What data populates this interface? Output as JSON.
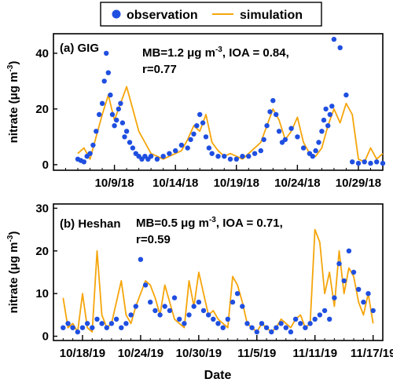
{
  "legend": {
    "observation_label": "observation",
    "simulation_label": "simulation",
    "observation_color": "#1f4fe0",
    "simulation_color": "#f5a50a"
  },
  "x_axis_title": "Date",
  "chart_data": [
    {
      "type": "scatter",
      "panel_label": "(a) GIG",
      "stats_line1": "MB=1.2 μg m",
      "stats_sup": "-3",
      "stats_line1_rest": ", IOA = 0.84,",
      "stats_line2": "r=0.77",
      "ylabel": "nitrate (μg m",
      "ylabel_sup": "-3",
      "ylabel_close": ")",
      "x_ticks": [
        "10/9/18",
        "10/14/18",
        "10/19/18",
        "10/24/18",
        "10/29/18"
      ],
      "xlim": [
        "2018-10-04",
        "2018-10-31"
      ],
      "y_ticks": [
        0,
        20,
        40
      ],
      "ylim": [
        -2,
        47
      ],
      "grid": false,
      "series": [
        {
          "name": "observation",
          "kind": "points",
          "x": [
            "2018-10-06 00:00",
            "2018-10-06 06:00",
            "2018-10-06 12:00",
            "2018-10-06 18:00",
            "2018-10-07 00:00",
            "2018-10-07 06:00",
            "2018-10-07 12:00",
            "2018-10-07 18:00",
            "2018-10-08 00:00",
            "2018-10-08 04:00",
            "2018-10-08 08:00",
            "2018-10-08 12:00",
            "2018-10-08 16:00",
            "2018-10-08 20:00",
            "2018-10-09 00:00",
            "2018-10-09 04:00",
            "2018-10-09 08:00",
            "2018-10-09 12:00",
            "2018-10-09 16:00",
            "2018-10-09 20:00",
            "2018-10-10 00:00",
            "2018-10-10 06:00",
            "2018-10-10 12:00",
            "2018-10-10 18:00",
            "2018-10-11 00:00",
            "2018-10-11 06:00",
            "2018-10-11 12:00",
            "2018-10-11 18:00",
            "2018-10-12 00:00",
            "2018-10-12 12:00",
            "2018-10-13 00:00",
            "2018-10-13 12:00",
            "2018-10-14 00:00",
            "2018-10-14 12:00",
            "2018-10-15 00:00",
            "2018-10-15 06:00",
            "2018-10-15 12:00",
            "2018-10-15 18:00",
            "2018-10-16 00:00",
            "2018-10-16 06:00",
            "2018-10-16 12:00",
            "2018-10-16 18:00",
            "2018-10-17 00:00",
            "2018-10-17 12:00",
            "2018-10-18 00:00",
            "2018-10-18 12:00",
            "2018-10-19 00:00",
            "2018-10-19 12:00",
            "2018-10-20 00:00",
            "2018-10-20 12:00",
            "2018-10-21 00:00",
            "2018-10-21 06:00",
            "2018-10-21 12:00",
            "2018-10-21 18:00",
            "2018-10-22 00:00",
            "2018-10-22 06:00",
            "2018-10-22 12:00",
            "2018-10-22 18:00",
            "2018-10-23 00:00",
            "2018-10-23 12:00",
            "2018-10-24 00:00",
            "2018-10-24 12:00",
            "2018-10-25 00:00",
            "2018-10-25 06:00",
            "2018-10-25 12:00",
            "2018-10-25 18:00",
            "2018-10-26 00:00",
            "2018-10-26 04:00",
            "2018-10-26 08:00",
            "2018-10-26 12:00",
            "2018-10-26 16:00",
            "2018-10-26 20:00",
            "2018-10-27 00:00",
            "2018-10-27 12:00",
            "2018-10-28 00:00",
            "2018-10-28 12:00",
            "2018-10-29 00:00",
            "2018-10-29 12:00",
            "2018-10-30 00:00",
            "2018-10-30 12:00",
            "2018-10-31 00:00"
          ],
          "y": [
            2,
            1.5,
            1,
            3,
            4,
            7,
            12,
            18,
            22,
            30,
            40,
            33,
            25,
            18,
            14,
            16,
            20,
            22,
            15,
            10,
            12,
            8,
            6,
            4,
            3,
            2,
            3,
            2,
            3,
            2,
            3,
            4,
            5,
            7,
            6,
            9,
            11,
            14,
            18,
            15,
            10,
            6,
            4,
            3,
            3,
            2,
            2,
            3,
            3,
            4,
            5,
            9,
            14,
            19,
            23,
            18,
            12,
            8,
            9,
            13,
            10,
            6,
            4,
            3,
            5,
            8,
            12,
            16,
            20,
            14,
            18,
            21,
            45,
            42,
            25,
            1,
            0.5,
            1,
            0.5,
            1,
            0.5
          ]
        },
        {
          "name": "simulation",
          "kind": "line",
          "x": [
            "2018-10-06 00:00",
            "2018-10-06 12:00",
            "2018-10-07 00:00",
            "2018-10-07 12:00",
            "2018-10-08 00:00",
            "2018-10-08 12:00",
            "2018-10-09 00:00",
            "2018-10-09 12:00",
            "2018-10-10 00:00",
            "2018-10-10 12:00",
            "2018-10-11 00:00",
            "2018-10-11 12:00",
            "2018-10-12 00:00",
            "2018-10-12 12:00",
            "2018-10-13 00:00",
            "2018-10-13 12:00",
            "2018-10-14 00:00",
            "2018-10-14 12:00",
            "2018-10-15 00:00",
            "2018-10-15 12:00",
            "2018-10-16 00:00",
            "2018-10-16 12:00",
            "2018-10-17 00:00",
            "2018-10-17 12:00",
            "2018-10-18 00:00",
            "2018-10-18 12:00",
            "2018-10-19 00:00",
            "2018-10-19 12:00",
            "2018-10-20 00:00",
            "2018-10-20 12:00",
            "2018-10-21 00:00",
            "2018-10-21 12:00",
            "2018-10-22 00:00",
            "2018-10-22 12:00",
            "2018-10-23 00:00",
            "2018-10-23 12:00",
            "2018-10-24 00:00",
            "2018-10-24 12:00",
            "2018-10-25 00:00",
            "2018-10-25 12:00",
            "2018-10-26 00:00",
            "2018-10-26 12:00",
            "2018-10-27 00:00",
            "2018-10-27 12:00",
            "2018-10-28 00:00",
            "2018-10-28 12:00",
            "2018-10-29 00:00",
            "2018-10-29 12:00",
            "2018-10-30 00:00",
            "2018-10-30 12:00",
            "2018-10-31 00:00"
          ],
          "y": [
            4,
            6,
            2,
            10,
            18,
            25,
            16,
            22,
            28,
            20,
            12,
            8,
            4,
            3,
            2,
            3,
            4,
            5,
            9,
            14,
            12,
            18,
            8,
            5,
            3,
            4,
            3,
            2,
            4,
            6,
            8,
            14,
            20,
            16,
            9,
            12,
            17,
            8,
            4,
            3,
            6,
            14,
            20,
            15,
            22,
            18,
            2,
            1,
            6,
            2,
            4
          ]
        }
      ]
    },
    {
      "type": "scatter",
      "panel_label": "(b) Heshan",
      "stats_line1": "MB=0.5 μg m",
      "stats_sup": "-3",
      "stats_line1_rest": ", IOA = 0.71,",
      "stats_line2": "r=0.59",
      "ylabel": "nitrate (μg m",
      "ylabel_sup": "-3",
      "ylabel_close": ")",
      "x_ticks": [
        "10/18/19",
        "10/24/19",
        "10/30/19",
        "11/5/19",
        "11/11/19",
        "11/17/19"
      ],
      "xlim": [
        "2019-10-15",
        "2019-11-18"
      ],
      "y_ticks": [
        0,
        10,
        20,
        30
      ],
      "ylim": [
        -1,
        31
      ],
      "grid": false,
      "series": [
        {
          "name": "observation",
          "kind": "points",
          "x": [
            "2019-10-16 00:00",
            "2019-10-16 12:00",
            "2019-10-17 00:00",
            "2019-10-17 12:00",
            "2019-10-18 00:00",
            "2019-10-18 12:00",
            "2019-10-19 00:00",
            "2019-10-19 12:00",
            "2019-10-20 00:00",
            "2019-10-20 12:00",
            "2019-10-21 00:00",
            "2019-10-21 12:00",
            "2019-10-22 00:00",
            "2019-10-22 12:00",
            "2019-10-23 00:00",
            "2019-10-23 12:00",
            "2019-10-24 00:00",
            "2019-10-24 12:00",
            "2019-10-25 00:00",
            "2019-10-25 12:00",
            "2019-10-26 00:00",
            "2019-10-26 12:00",
            "2019-10-27 00:00",
            "2019-10-27 12:00",
            "2019-10-28 00:00",
            "2019-10-28 12:00",
            "2019-10-29 00:00",
            "2019-10-29 12:00",
            "2019-10-30 00:00",
            "2019-10-30 12:00",
            "2019-10-31 00:00",
            "2019-10-31 12:00",
            "2019-11-01 00:00",
            "2019-11-01 12:00",
            "2019-11-02 00:00",
            "2019-11-02 12:00",
            "2019-11-03 00:00",
            "2019-11-03 12:00",
            "2019-11-04 00:00",
            "2019-11-04 12:00",
            "2019-11-05 00:00",
            "2019-11-05 12:00",
            "2019-11-06 00:00",
            "2019-11-06 12:00",
            "2019-11-07 00:00",
            "2019-11-07 12:00",
            "2019-11-08 00:00",
            "2019-11-08 12:00",
            "2019-11-09 00:00",
            "2019-11-09 12:00",
            "2019-11-10 00:00",
            "2019-11-10 12:00",
            "2019-11-11 00:00",
            "2019-11-11 12:00",
            "2019-11-12 00:00",
            "2019-11-12 12:00",
            "2019-11-13 00:00",
            "2019-11-13 12:00",
            "2019-11-14 00:00",
            "2019-11-14 12:00",
            "2019-11-15 00:00",
            "2019-11-15 12:00",
            "2019-11-16 00:00",
            "2019-11-16 12:00",
            "2019-11-17 00:00"
          ],
          "y": [
            2,
            3,
            2,
            1,
            2,
            3,
            2,
            4,
            3,
            2,
            3,
            4,
            2,
            3,
            5,
            7,
            18,
            12,
            8,
            6,
            5,
            7,
            6,
            9,
            4,
            3,
            5,
            7,
            8,
            6,
            5,
            4,
            3,
            2,
            4,
            8,
            10,
            7,
            3,
            2,
            1,
            3,
            2,
            1,
            2,
            3,
            2,
            1,
            4,
            3,
            2,
            3,
            4,
            5,
            6,
            4,
            9,
            17,
            13,
            20,
            15,
            11,
            8,
            10,
            6
          ]
        },
        {
          "name": "simulation",
          "kind": "line",
          "x": [
            "2019-10-16 00:00",
            "2019-10-16 12:00",
            "2019-10-17 00:00",
            "2019-10-17 12:00",
            "2019-10-18 00:00",
            "2019-10-18 12:00",
            "2019-10-19 00:00",
            "2019-10-19 12:00",
            "2019-10-20 00:00",
            "2019-10-20 12:00",
            "2019-10-21 00:00",
            "2019-10-21 12:00",
            "2019-10-22 00:00",
            "2019-10-22 12:00",
            "2019-10-23 00:00",
            "2019-10-23 12:00",
            "2019-10-24 00:00",
            "2019-10-24 12:00",
            "2019-10-25 00:00",
            "2019-10-25 12:00",
            "2019-10-26 00:00",
            "2019-10-26 12:00",
            "2019-10-27 00:00",
            "2019-10-27 12:00",
            "2019-10-28 00:00",
            "2019-10-28 12:00",
            "2019-10-29 00:00",
            "2019-10-29 12:00",
            "2019-10-30 00:00",
            "2019-10-30 12:00",
            "2019-10-31 00:00",
            "2019-10-31 12:00",
            "2019-11-01 00:00",
            "2019-11-01 12:00",
            "2019-11-02 00:00",
            "2019-11-02 12:00",
            "2019-11-03 00:00",
            "2019-11-03 12:00",
            "2019-11-04 00:00",
            "2019-11-04 12:00",
            "2019-11-05 00:00",
            "2019-11-05 12:00",
            "2019-11-06 00:00",
            "2019-11-06 12:00",
            "2019-11-07 00:00",
            "2019-11-07 12:00",
            "2019-11-08 00:00",
            "2019-11-08 12:00",
            "2019-11-09 00:00",
            "2019-11-09 12:00",
            "2019-11-10 00:00",
            "2019-11-10 12:00",
            "2019-11-11 00:00",
            "2019-11-11 12:00",
            "2019-11-12 00:00",
            "2019-11-12 12:00",
            "2019-11-13 00:00",
            "2019-11-13 12:00",
            "2019-11-14 00:00",
            "2019-11-14 12:00",
            "2019-11-15 00:00",
            "2019-11-15 12:00",
            "2019-11-16 00:00",
            "2019-11-16 12:00",
            "2019-11-17 00:00"
          ],
          "y": [
            9,
            2,
            3,
            1,
            10,
            2,
            1,
            20,
            5,
            2,
            3,
            8,
            13,
            5,
            3,
            7,
            10,
            13,
            12,
            9,
            5,
            12,
            8,
            4,
            3,
            2,
            13,
            7,
            15,
            10,
            5,
            6,
            4,
            3,
            2,
            14,
            12,
            8,
            3,
            2,
            1,
            3,
            2,
            1,
            2,
            4,
            3,
            2,
            4,
            5,
            2,
            3,
            25,
            22,
            10,
            15,
            7,
            20,
            10,
            16,
            14,
            8,
            5,
            10,
            3
          ]
        }
      ]
    }
  ]
}
